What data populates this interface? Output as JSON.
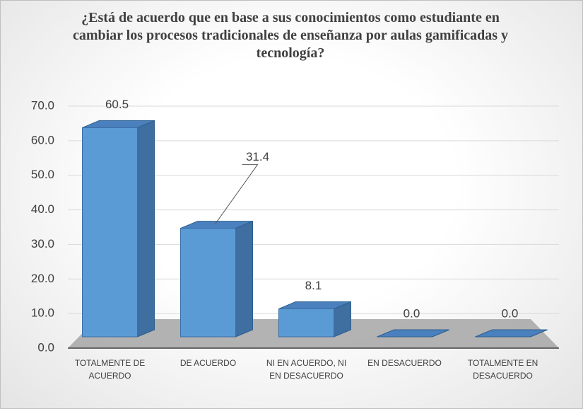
{
  "chart_data": {
    "type": "bar3d",
    "title": "¿Está de acuerdo que en base a sus conocimientos  como estudiante en cambiar los procesos tradicionales de enseñanza por aulas gamificadas y tecnología?",
    "categories": [
      "TOTALMENTE DE ACUERDO",
      "DE ACUERDO",
      "NI EN ACUERDO, NI EN DESACUERDO",
      "EN DESACUERDO",
      "TOTALMENTE EN DESACUERDO"
    ],
    "values": [
      60.5,
      31.4,
      8.1,
      0,
      0
    ],
    "value_labels": [
      "60.5",
      "31.4",
      "8.1",
      "0.0",
      "0.0"
    ],
    "color": "#5b9bd5",
    "ylim": [
      0,
      70
    ],
    "yticks": [
      {
        "value": 0,
        "label": "0.0"
      },
      {
        "value": 10,
        "label": "10.0"
      },
      {
        "value": 20,
        "label": "20.0"
      },
      {
        "value": 30,
        "label": "30.0"
      },
      {
        "value": 40,
        "label": "40.0"
      },
      {
        "value": 50,
        "label": "50.0"
      },
      {
        "value": 60,
        "label": "60.0"
      },
      {
        "value": 70,
        "label": "70.0"
      }
    ],
    "grid": true
  }
}
